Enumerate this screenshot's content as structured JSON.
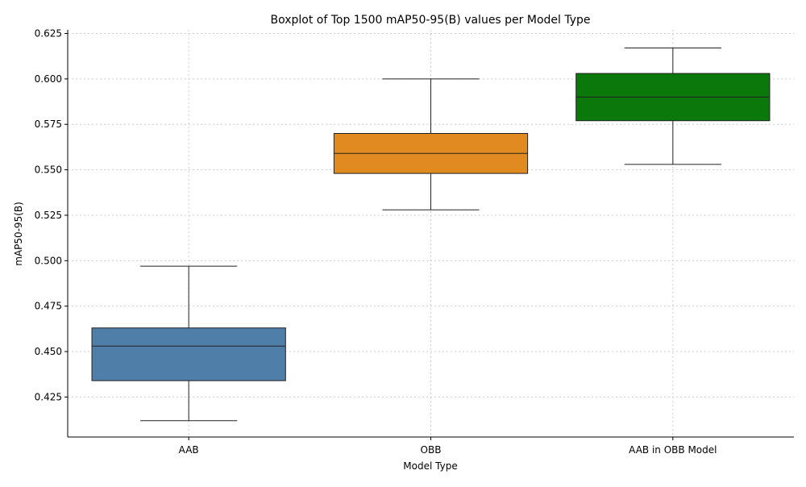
{
  "chart_data": {
    "type": "boxplot",
    "title": "Boxplot of Top 1500 mAP50-95(B) values per Model Type",
    "xlabel": "Model Type",
    "ylabel": "mAP50-95(B)",
    "categories": [
      "AAB",
      "OBB",
      "AAB in OBB Model"
    ],
    "ylim": [
      0.403,
      0.627
    ],
    "yticks": [
      0.425,
      0.45,
      0.475,
      0.5,
      0.525,
      0.55,
      0.575,
      0.6,
      0.625
    ],
    "ytick_labels": [
      "0.425",
      "0.450",
      "0.475",
      "0.500",
      "0.525",
      "0.550",
      "0.575",
      "0.600",
      "0.625"
    ],
    "grid": true,
    "boxes": [
      {
        "category": "AAB",
        "whisker_low": 0.412,
        "q1": 0.434,
        "median": 0.453,
        "q3": 0.463,
        "whisker_high": 0.497,
        "color": "#4f7fa8"
      },
      {
        "category": "OBB",
        "whisker_low": 0.528,
        "q1": 0.548,
        "median": 0.559,
        "q3": 0.57,
        "whisker_high": 0.6,
        "color": "#e08a20"
      },
      {
        "category": "AAB in OBB Model",
        "whisker_low": 0.553,
        "q1": 0.577,
        "median": 0.59,
        "q3": 0.603,
        "whisker_high": 0.617,
        "color": "#0a780a"
      }
    ]
  }
}
